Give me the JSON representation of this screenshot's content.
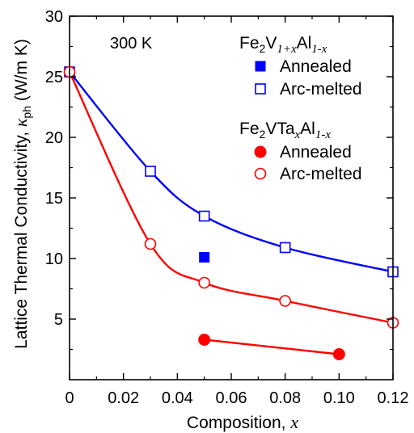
{
  "chart_data": {
    "type": "scatter",
    "xlabel": "Composition, x",
    "xlabel_parts": {
      "text": "Composition, ",
      "var": "x"
    },
    "ylabel": "Lattice Thermal Conductivity, κph (W/m K)",
    "ylabel_parts": {
      "text": "Lattice Thermal Conductivity, ",
      "kappa": "κ",
      "sub": "ph",
      "unit": " (W/m K)"
    },
    "xlim": [
      0,
      0.12
    ],
    "ylim": [
      0,
      30
    ],
    "x_ticks": [
      "0",
      "0.02",
      "0.04",
      "0.06",
      "0.08",
      "0.10",
      "0.12"
    ],
    "y_ticks": [
      "5",
      "10",
      "15",
      "20",
      "25",
      "30"
    ],
    "x_tick_values": [
      0,
      0.02,
      0.04,
      0.06,
      0.08,
      0.1,
      0.12
    ],
    "y_tick_values": [
      5,
      10,
      15,
      20,
      25,
      30
    ],
    "annotation": "300 K",
    "legend_groups": [
      {
        "title": "Fe2V1+xAl1-x",
        "title_parts": [
          {
            "t": "Fe",
            "style": "normal"
          },
          {
            "t": "2",
            "style": "sub"
          },
          {
            "t": "V",
            "style": "normal"
          },
          {
            "t": "1+x",
            "style": "sub-italic"
          },
          {
            "t": "Al",
            "style": "normal"
          },
          {
            "t": "1-x",
            "style": "sub-italic"
          }
        ],
        "entries": [
          "Annealed",
          "Arc-melted"
        ]
      },
      {
        "title": "Fe2VTaxAl1-x",
        "title_parts": [
          {
            "t": "Fe",
            "style": "normal"
          },
          {
            "t": "2",
            "style": "sub"
          },
          {
            "t": "VTa",
            "style": "normal"
          },
          {
            "t": "x",
            "style": "sub-italic"
          },
          {
            "t": "Al",
            "style": "normal"
          },
          {
            "t": "1-x",
            "style": "sub-italic"
          }
        ],
        "entries": [
          "Annealed",
          "Arc-melted"
        ]
      }
    ],
    "series": [
      {
        "group": "Fe2V1+xAl1-x",
        "name": "Annealed",
        "marker": "square-filled",
        "color": "#0000ff",
        "line": false,
        "x": [
          0.05
        ],
        "y": [
          10.1
        ]
      },
      {
        "group": "Fe2V1+xAl1-x",
        "name": "Arc-melted",
        "marker": "square-open",
        "color": "#0000ff",
        "line": true,
        "x": [
          0,
          0.03,
          0.05,
          0.08,
          0.12
        ],
        "y": [
          25.4,
          17.2,
          13.5,
          10.9,
          8.9
        ]
      },
      {
        "group": "Fe2VTaxAl1-x",
        "name": "Annealed",
        "marker": "circle-filled",
        "color": "#ff0000",
        "line": true,
        "x": [
          0.05,
          0.1
        ],
        "y": [
          3.3,
          2.1
        ]
      },
      {
        "group": "Fe2VTaxAl1-x",
        "name": "Arc-melted",
        "marker": "circle-open",
        "color": "#ff0000",
        "line": true,
        "x": [
          0,
          0.03,
          0.05,
          0.08,
          0.12
        ],
        "y": [
          25.4,
          11.2,
          8.0,
          6.5,
          4.7
        ]
      }
    ],
    "grid": false,
    "legend_placement": "top-right"
  }
}
